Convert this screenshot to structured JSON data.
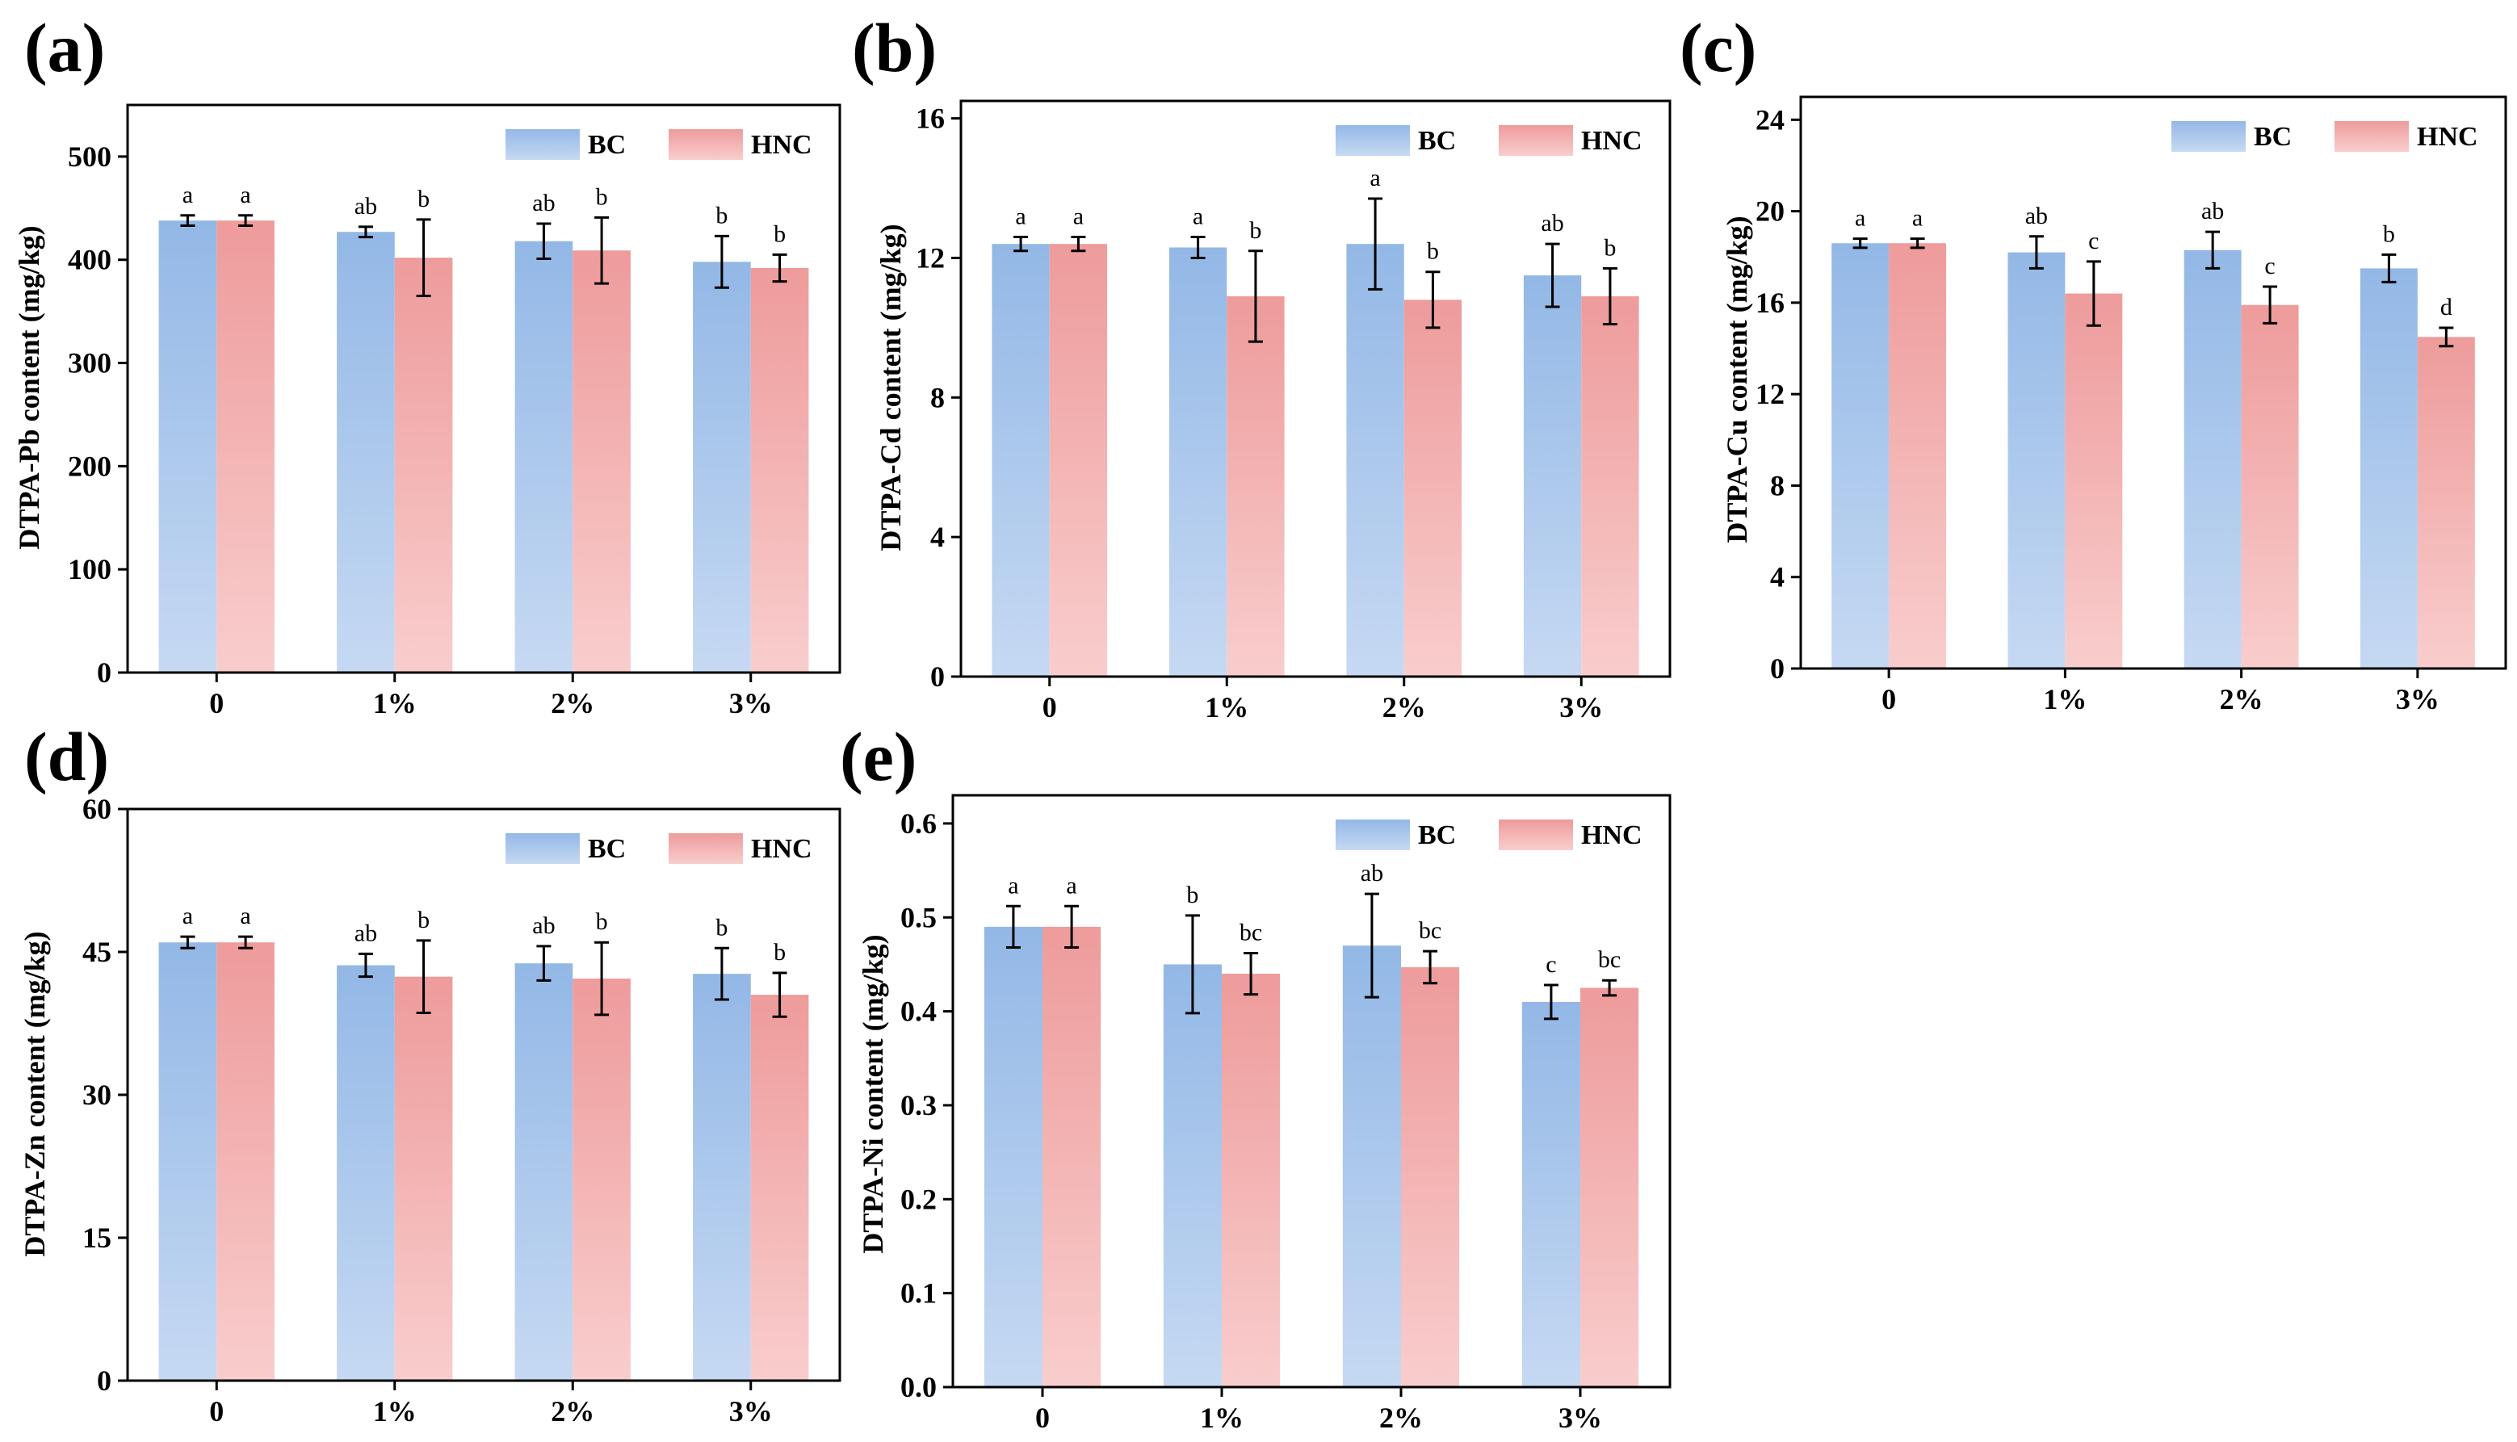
{
  "colors": {
    "BC_top": "#93b8e6",
    "BC_bottom": "#c6d9f3",
    "HNC_top": "#ee9b9b",
    "HNC_bottom": "#f9cdcd",
    "axis": "#000000"
  },
  "chart_data": [
    {
      "type": "bar",
      "panel": "(a)",
      "ylabel": "DTPA-Pb content (mg/kg)",
      "categories": [
        "0",
        "1%",
        "2%",
        "3%"
      ],
      "ylim": [
        0,
        550
      ],
      "yticks": [
        "0",
        "100",
        "200",
        "300",
        "400",
        "500"
      ],
      "ytick_values": [
        0,
        100,
        200,
        300,
        400,
        500
      ],
      "legend": {
        "position": "top-right",
        "labels": [
          "BC",
          "HNC"
        ]
      },
      "series": [
        {
          "name": "BC",
          "values": [
            438,
            427,
            418,
            398
          ],
          "errors": [
            5,
            5,
            17,
            25
          ],
          "letters": [
            "a",
            "ab",
            "ab",
            "b"
          ]
        },
        {
          "name": "HNC",
          "values": [
            438,
            402,
            409,
            392
          ],
          "errors": [
            5,
            37,
            32,
            13
          ],
          "letters": [
            "a",
            "b",
            "b",
            "b"
          ]
        }
      ]
    },
    {
      "type": "bar",
      "panel": "(b)",
      "ylabel": "DTPA-Cd content (mg/kg)",
      "categories": [
        "0",
        "1%",
        "2%",
        "3%"
      ],
      "ylim": [
        0,
        16.5
      ],
      "yticks": [
        "0",
        "4",
        "8",
        "12",
        "16"
      ],
      "ytick_values": [
        0,
        4,
        8,
        12,
        16
      ],
      "legend": {
        "position": "top-right",
        "labels": [
          "BC",
          "HNC"
        ]
      },
      "series": [
        {
          "name": "BC",
          "values": [
            12.4,
            12.3,
            12.4,
            11.5
          ],
          "errors": [
            0.2,
            0.3,
            1.3,
            0.9
          ],
          "letters": [
            "a",
            "a",
            "a",
            "ab"
          ]
        },
        {
          "name": "HNC",
          "values": [
            12.4,
            10.9,
            10.8,
            10.9
          ],
          "errors": [
            0.2,
            1.3,
            0.8,
            0.8
          ],
          "letters": [
            "a",
            "b",
            "b",
            "b"
          ]
        }
      ]
    },
    {
      "type": "bar",
      "panel": "(c)",
      "ylabel": "DTPA-Cu content (mg/kg)",
      "categories": [
        "0",
        "1%",
        "2%",
        "3%"
      ],
      "ylim": [
        0,
        25
      ],
      "yticks": [
        "0",
        "4",
        "8",
        "12",
        "16",
        "20",
        "24"
      ],
      "ytick_values": [
        0,
        4,
        8,
        12,
        16,
        20,
        24
      ],
      "legend": {
        "position": "top-right",
        "labels": [
          "BC",
          "HNC"
        ]
      },
      "series": [
        {
          "name": "BC",
          "values": [
            18.6,
            18.2,
            18.3,
            17.5
          ],
          "errors": [
            0.2,
            0.7,
            0.8,
            0.6
          ],
          "letters": [
            "a",
            "ab",
            "ab",
            "b"
          ]
        },
        {
          "name": "HNC",
          "values": [
            18.6,
            16.4,
            15.9,
            14.5
          ],
          "errors": [
            0.2,
            1.4,
            0.8,
            0.4
          ],
          "letters": [
            "a",
            "c",
            "c",
            "d"
          ]
        }
      ]
    },
    {
      "type": "bar",
      "panel": "(d)",
      "ylabel": "DTPA-Zn content (mg/kg)",
      "categories": [
        "0",
        "1%",
        "2%",
        "3%"
      ],
      "ylim": [
        0,
        60
      ],
      "yticks": [
        "0",
        "15",
        "30",
        "45",
        "60"
      ],
      "ytick_values": [
        0,
        15,
        30,
        45,
        60
      ],
      "legend": {
        "position": "top-right",
        "labels": [
          "BC",
          "HNC"
        ]
      },
      "series": [
        {
          "name": "BC",
          "values": [
            46.0,
            43.6,
            43.8,
            42.7
          ],
          "errors": [
            0.6,
            1.2,
            1.8,
            2.7
          ],
          "letters": [
            "a",
            "ab",
            "ab",
            "b"
          ]
        },
        {
          "name": "HNC",
          "values": [
            46.0,
            42.4,
            42.2,
            40.5
          ],
          "errors": [
            0.6,
            3.8,
            3.8,
            2.3
          ],
          "letters": [
            "a",
            "b",
            "b",
            "b"
          ]
        }
      ]
    },
    {
      "type": "bar",
      "panel": "(e)",
      "ylabel": "DTPA-Ni content (mg/kg)",
      "categories": [
        "0",
        "1%",
        "2%",
        "3%"
      ],
      "ylim": [
        0,
        0.63
      ],
      "yticks": [
        "0.0",
        "0.1",
        "0.2",
        "0.3",
        "0.4",
        "0.5",
        "0.6"
      ],
      "ytick_values": [
        0,
        0.1,
        0.2,
        0.3,
        0.4,
        0.5,
        0.6
      ],
      "legend": {
        "position": "top-right",
        "labels": [
          "BC",
          "HNC"
        ]
      },
      "series": [
        {
          "name": "BC",
          "values": [
            0.49,
            0.45,
            0.47,
            0.41
          ],
          "errors": [
            0.022,
            0.052,
            0.055,
            0.018
          ],
          "letters": [
            "a",
            "b",
            "ab",
            "c"
          ]
        },
        {
          "name": "HNC",
          "values": [
            0.49,
            0.44,
            0.447,
            0.425
          ],
          "errors": [
            0.022,
            0.022,
            0.017,
            0.008
          ],
          "letters": [
            "a",
            "bc",
            "bc",
            "bc"
          ]
        }
      ]
    }
  ]
}
